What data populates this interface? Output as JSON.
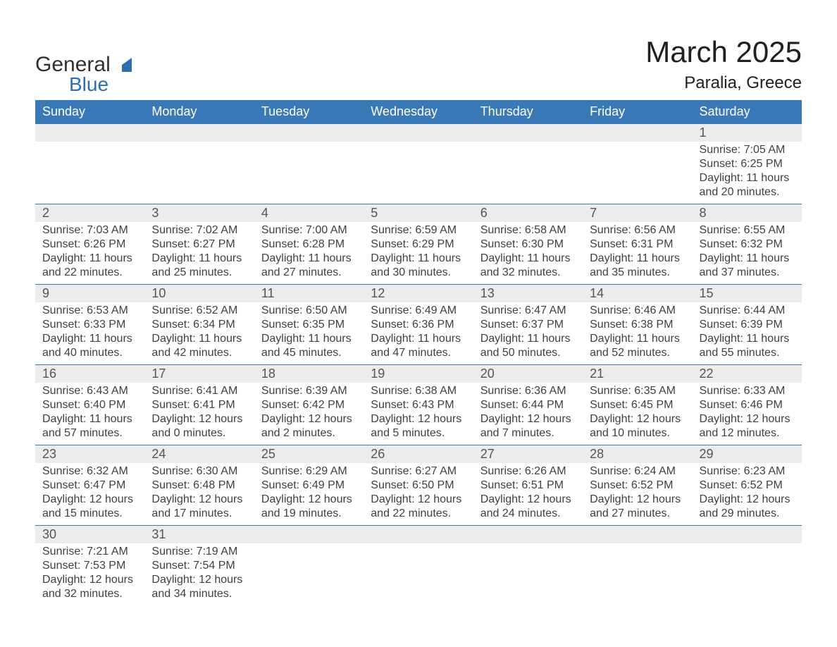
{
  "brand": {
    "word1": "General",
    "word2": "Blue",
    "tri_color": "#2e6fb0"
  },
  "title": {
    "month": "March 2025",
    "location": "Paralia, Greece"
  },
  "colors": {
    "header_bg": "#3a79b7",
    "header_text": "#ffffff",
    "row_sep": "#3a79b7",
    "daynum_bg": "#ececec",
    "text": "#404040",
    "bg": "#ffffff"
  },
  "fonts": {
    "title_size": 42,
    "location_size": 24,
    "th_size": 18,
    "cell_size": 16
  },
  "weekdays": [
    "Sunday",
    "Monday",
    "Tuesday",
    "Wednesday",
    "Thursday",
    "Friday",
    "Saturday"
  ],
  "labels": {
    "sunrise": "Sunrise:",
    "sunset": "Sunset:",
    "daylight": "Daylight:"
  },
  "weeks": [
    [
      null,
      null,
      null,
      null,
      null,
      null,
      {
        "n": "1",
        "sunrise": "7:05 AM",
        "sunset": "6:25 PM",
        "day_h": "11",
        "day_m": "20"
      }
    ],
    [
      {
        "n": "2",
        "sunrise": "7:03 AM",
        "sunset": "6:26 PM",
        "day_h": "11",
        "day_m": "22"
      },
      {
        "n": "3",
        "sunrise": "7:02 AM",
        "sunset": "6:27 PM",
        "day_h": "11",
        "day_m": "25"
      },
      {
        "n": "4",
        "sunrise": "7:00 AM",
        "sunset": "6:28 PM",
        "day_h": "11",
        "day_m": "27"
      },
      {
        "n": "5",
        "sunrise": "6:59 AM",
        "sunset": "6:29 PM",
        "day_h": "11",
        "day_m": "30"
      },
      {
        "n": "6",
        "sunrise": "6:58 AM",
        "sunset": "6:30 PM",
        "day_h": "11",
        "day_m": "32"
      },
      {
        "n": "7",
        "sunrise": "6:56 AM",
        "sunset": "6:31 PM",
        "day_h": "11",
        "day_m": "35"
      },
      {
        "n": "8",
        "sunrise": "6:55 AM",
        "sunset": "6:32 PM",
        "day_h": "11",
        "day_m": "37"
      }
    ],
    [
      {
        "n": "9",
        "sunrise": "6:53 AM",
        "sunset": "6:33 PM",
        "day_h": "11",
        "day_m": "40"
      },
      {
        "n": "10",
        "sunrise": "6:52 AM",
        "sunset": "6:34 PM",
        "day_h": "11",
        "day_m": "42"
      },
      {
        "n": "11",
        "sunrise": "6:50 AM",
        "sunset": "6:35 PM",
        "day_h": "11",
        "day_m": "45"
      },
      {
        "n": "12",
        "sunrise": "6:49 AM",
        "sunset": "6:36 PM",
        "day_h": "11",
        "day_m": "47"
      },
      {
        "n": "13",
        "sunrise": "6:47 AM",
        "sunset": "6:37 PM",
        "day_h": "11",
        "day_m": "50"
      },
      {
        "n": "14",
        "sunrise": "6:46 AM",
        "sunset": "6:38 PM",
        "day_h": "11",
        "day_m": "52"
      },
      {
        "n": "15",
        "sunrise": "6:44 AM",
        "sunset": "6:39 PM",
        "day_h": "11",
        "day_m": "55"
      }
    ],
    [
      {
        "n": "16",
        "sunrise": "6:43 AM",
        "sunset": "6:40 PM",
        "day_h": "11",
        "day_m": "57"
      },
      {
        "n": "17",
        "sunrise": "6:41 AM",
        "sunset": "6:41 PM",
        "day_h": "12",
        "day_m": "0"
      },
      {
        "n": "18",
        "sunrise": "6:39 AM",
        "sunset": "6:42 PM",
        "day_h": "12",
        "day_m": "2"
      },
      {
        "n": "19",
        "sunrise": "6:38 AM",
        "sunset": "6:43 PM",
        "day_h": "12",
        "day_m": "5"
      },
      {
        "n": "20",
        "sunrise": "6:36 AM",
        "sunset": "6:44 PM",
        "day_h": "12",
        "day_m": "7"
      },
      {
        "n": "21",
        "sunrise": "6:35 AM",
        "sunset": "6:45 PM",
        "day_h": "12",
        "day_m": "10"
      },
      {
        "n": "22",
        "sunrise": "6:33 AM",
        "sunset": "6:46 PM",
        "day_h": "12",
        "day_m": "12"
      }
    ],
    [
      {
        "n": "23",
        "sunrise": "6:32 AM",
        "sunset": "6:47 PM",
        "day_h": "12",
        "day_m": "15"
      },
      {
        "n": "24",
        "sunrise": "6:30 AM",
        "sunset": "6:48 PM",
        "day_h": "12",
        "day_m": "17"
      },
      {
        "n": "25",
        "sunrise": "6:29 AM",
        "sunset": "6:49 PM",
        "day_h": "12",
        "day_m": "19"
      },
      {
        "n": "26",
        "sunrise": "6:27 AM",
        "sunset": "6:50 PM",
        "day_h": "12",
        "day_m": "22"
      },
      {
        "n": "27",
        "sunrise": "6:26 AM",
        "sunset": "6:51 PM",
        "day_h": "12",
        "day_m": "24"
      },
      {
        "n": "28",
        "sunrise": "6:24 AM",
        "sunset": "6:52 PM",
        "day_h": "12",
        "day_m": "27"
      },
      {
        "n": "29",
        "sunrise": "6:23 AM",
        "sunset": "6:52 PM",
        "day_h": "12",
        "day_m": "29"
      }
    ],
    [
      {
        "n": "30",
        "sunrise": "7:21 AM",
        "sunset": "7:53 PM",
        "day_h": "12",
        "day_m": "32"
      },
      {
        "n": "31",
        "sunrise": "7:19 AM",
        "sunset": "7:54 PM",
        "day_h": "12",
        "day_m": "34"
      },
      null,
      null,
      null,
      null,
      null
    ]
  ]
}
